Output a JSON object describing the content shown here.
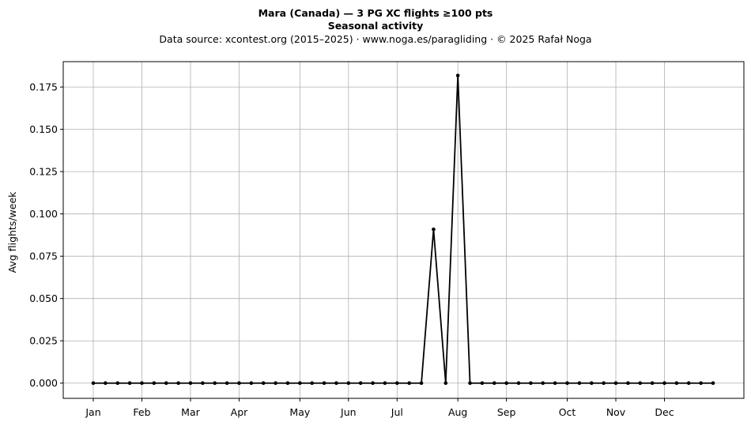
{
  "chart_data": {
    "type": "line",
    "title": "Mara (Canada)  —  3 PG XC flights ≥100 pts",
    "subtitle": "Seasonal activity",
    "source_line": "Data source: xcontest.org (2015–2025)  ·  www.noga.es/paragliding  ·  © 2025 Rafał Noga",
    "xlabel": "",
    "ylabel": "Avg flights/week",
    "ylim": [
      -0.009,
      0.19
    ],
    "grid": true,
    "x_tick_labels": [
      "Jan",
      "Feb",
      "Mar",
      "Apr",
      "May",
      "Jun",
      "Jul",
      "Aug",
      "Sep",
      "Oct",
      "Nov",
      "Dec"
    ],
    "x_tick_weeks": [
      1,
      5,
      9,
      13,
      18,
      22,
      26,
      31,
      35,
      40,
      44,
      48
    ],
    "y_ticks": [
      0.0,
      0.025,
      0.05,
      0.075,
      0.1,
      0.125,
      0.15,
      0.175
    ],
    "y_tick_labels": [
      "0.000",
      "0.025",
      "0.050",
      "0.075",
      "0.100",
      "0.125",
      "0.150",
      "0.175"
    ],
    "line_color": "#000000",
    "series": [
      {
        "x": [
          1,
          2,
          3,
          4,
          5,
          6,
          7,
          8,
          9,
          10,
          11,
          12,
          13,
          14,
          15,
          16,
          17,
          18,
          19,
          20,
          21,
          22,
          23,
          24,
          25,
          26,
          27,
          28,
          29,
          30,
          31,
          32,
          33,
          34,
          35,
          36,
          37,
          38,
          39,
          40,
          41,
          42,
          43,
          44,
          45,
          46,
          47,
          48,
          49,
          50,
          51,
          52
        ],
        "values": [
          0,
          0,
          0,
          0,
          0,
          0,
          0,
          0,
          0,
          0,
          0,
          0,
          0,
          0,
          0,
          0,
          0,
          0,
          0,
          0,
          0,
          0,
          0,
          0,
          0,
          0,
          0,
          0,
          0.0909,
          0,
          0.1818,
          0,
          0,
          0,
          0,
          0,
          0,
          0,
          0,
          0,
          0,
          0,
          0,
          0,
          0,
          0,
          0,
          0,
          0,
          0,
          0,
          0
        ]
      }
    ]
  }
}
